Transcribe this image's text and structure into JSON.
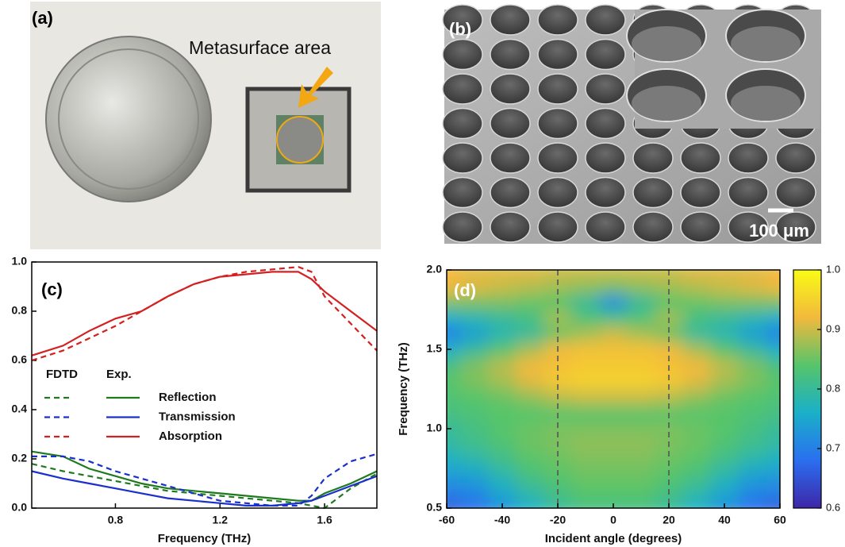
{
  "figure": {
    "a": {
      "label": "(a)",
      "annotation": "Metasurface area"
    },
    "b": {
      "label": "(b)",
      "scale_bar": "100 μm"
    }
  },
  "chart_data": [
    {
      "type": "line",
      "label": "(c)",
      "x_label": "Frequency (THz)",
      "x": [
        0.48,
        0.6,
        0.7,
        0.8,
        0.9,
        1.0,
        1.1,
        1.2,
        1.3,
        1.4,
        1.5,
        1.55,
        1.6,
        1.7,
        1.8
      ],
      "xlim": [
        0.48,
        1.8
      ],
      "xticks": [
        0.8,
        1.2,
        1.6
      ],
      "ylim": [
        0,
        1
      ],
      "yticks": [
        {
          "value": 0,
          "label": "0.0"
        },
        0.2,
        0.4,
        0.6,
        0.8,
        {
          "value": 1,
          "label": "1.0"
        }
      ],
      "legend_headers": [
        "FDTD",
        "Exp."
      ],
      "series": [
        {
          "name": "Reflection",
          "color": "#1f7a1f",
          "values": [
            0.23,
            0.21,
            0.16,
            0.13,
            0.1,
            0.08,
            0.07,
            0.06,
            0.05,
            0.04,
            0.03,
            0.03,
            0.06,
            0.1,
            0.15
          ],
          "fdtd_values": [
            0.18,
            0.15,
            0.13,
            0.11,
            0.09,
            0.07,
            0.06,
            0.05,
            0.04,
            0.03,
            0.02,
            0.01,
            0.0,
            0.08,
            0.14
          ]
        },
        {
          "name": "Transmission",
          "color": "#1a2fcc",
          "values": [
            0.15,
            0.12,
            0.1,
            0.08,
            0.06,
            0.04,
            0.03,
            0.02,
            0.01,
            0.01,
            0.02,
            0.03,
            0.05,
            0.09,
            0.13
          ],
          "fdtd_values": [
            0.21,
            0.21,
            0.19,
            0.15,
            0.12,
            0.09,
            0.06,
            0.03,
            0.02,
            0.01,
            0.01,
            0.05,
            0.12,
            0.19,
            0.22
          ]
        },
        {
          "name": "Absorption",
          "color": "#d42020",
          "values": [
            0.62,
            0.66,
            0.72,
            0.77,
            0.8,
            0.86,
            0.91,
            0.94,
            0.95,
            0.96,
            0.96,
            0.93,
            0.88,
            0.8,
            0.72
          ],
          "fdtd_values": [
            0.6,
            0.64,
            0.69,
            0.74,
            0.8,
            0.86,
            0.91,
            0.94,
            0.96,
            0.97,
            0.98,
            0.96,
            0.86,
            0.75,
            0.64
          ]
        }
      ]
    },
    {
      "type": "heatmap",
      "label": "(d)",
      "x_label": "Incident angle (degrees)",
      "y_label": "Frequency (THz)",
      "x": [
        -60,
        -50,
        -40,
        -30,
        -20,
        -10,
        0,
        10,
        20,
        30,
        40,
        50,
        60
      ],
      "y": [
        0.5,
        0.6,
        0.7,
        0.8,
        0.9,
        1.0,
        1.1,
        1.2,
        1.3,
        1.4,
        1.5,
        1.6,
        1.7,
        1.8,
        1.9,
        2.0
      ],
      "z": [
        [
          0.66,
          0.68,
          0.72,
          0.76,
          0.8,
          0.82,
          0.82,
          0.82,
          0.8,
          0.76,
          0.72,
          0.68,
          0.66
        ],
        [
          0.7,
          0.71,
          0.75,
          0.79,
          0.82,
          0.84,
          0.84,
          0.84,
          0.82,
          0.79,
          0.75,
          0.71,
          0.7
        ],
        [
          0.73,
          0.74,
          0.78,
          0.82,
          0.84,
          0.85,
          0.85,
          0.85,
          0.84,
          0.82,
          0.78,
          0.74,
          0.73
        ],
        [
          0.76,
          0.78,
          0.81,
          0.84,
          0.85,
          0.86,
          0.86,
          0.86,
          0.85,
          0.84,
          0.81,
          0.78,
          0.76
        ],
        [
          0.79,
          0.81,
          0.83,
          0.85,
          0.86,
          0.87,
          0.87,
          0.87,
          0.86,
          0.85,
          0.83,
          0.81,
          0.79
        ],
        [
          0.8,
          0.82,
          0.84,
          0.85,
          0.86,
          0.86,
          0.86,
          0.86,
          0.86,
          0.85,
          0.84,
          0.82,
          0.8
        ],
        [
          0.82,
          0.83,
          0.84,
          0.84,
          0.84,
          0.84,
          0.84,
          0.84,
          0.84,
          0.84,
          0.84,
          0.83,
          0.82
        ],
        [
          0.83,
          0.84,
          0.85,
          0.87,
          0.89,
          0.9,
          0.9,
          0.9,
          0.89,
          0.87,
          0.85,
          0.84,
          0.83
        ],
        [
          0.84,
          0.86,
          0.88,
          0.91,
          0.94,
          0.95,
          0.95,
          0.95,
          0.94,
          0.91,
          0.88,
          0.86,
          0.84
        ],
        [
          0.82,
          0.86,
          0.89,
          0.92,
          0.93,
          0.94,
          0.94,
          0.94,
          0.93,
          0.92,
          0.89,
          0.86,
          0.82
        ],
        [
          0.76,
          0.8,
          0.84,
          0.88,
          0.92,
          0.93,
          0.93,
          0.93,
          0.92,
          0.88,
          0.84,
          0.8,
          0.76
        ],
        [
          0.7,
          0.74,
          0.78,
          0.8,
          0.85,
          0.88,
          0.9,
          0.88,
          0.85,
          0.8,
          0.78,
          0.74,
          0.7
        ],
        [
          0.76,
          0.78,
          0.8,
          0.82,
          0.88,
          0.83,
          0.82,
          0.83,
          0.88,
          0.82,
          0.8,
          0.78,
          0.76
        ],
        [
          0.86,
          0.86,
          0.86,
          0.85,
          0.84,
          0.8,
          0.72,
          0.8,
          0.84,
          0.85,
          0.86,
          0.86,
          0.86
        ],
        [
          0.92,
          0.91,
          0.9,
          0.89,
          0.88,
          0.87,
          0.86,
          0.87,
          0.88,
          0.89,
          0.9,
          0.91,
          0.92
        ],
        [
          0.92,
          0.91,
          0.91,
          0.91,
          0.9,
          0.9,
          0.9,
          0.9,
          0.9,
          0.91,
          0.91,
          0.91,
          0.92
        ]
      ],
      "xlim": [
        -60,
        60
      ],
      "xticks": [
        -60,
        -40,
        -20,
        0,
        20,
        40,
        60
      ],
      "ylim": [
        0.5,
        2
      ],
      "yticks": [
        0.5,
        {
          "value": 1,
          "label": "1.0"
        },
        1.5,
        {
          "value": 2,
          "label": "2.0"
        }
      ],
      "zlim": [
        0.6,
        1
      ],
      "zticks": [
        0.6,
        0.7,
        0.8,
        0.9,
        {
          "value": 1,
          "label": "1.0"
        }
      ],
      "colormap": [
        "#3e26a8",
        "#2a6ff0",
        "#1ab0c8",
        "#56c46a",
        "#f2b93c",
        "#f9fb15"
      ],
      "guide_lines": [
        -20,
        20
      ]
    }
  ]
}
